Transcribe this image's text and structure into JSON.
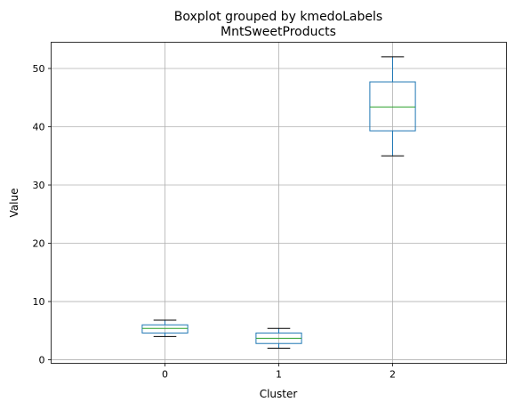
{
  "chart_data": {
    "type": "boxplot",
    "suptitle": "Boxplot grouped by kmedoLabels",
    "title": "MntSweetProducts",
    "xlabel": "Cluster",
    "ylabel": "Value",
    "categories": [
      "0",
      "1",
      "2"
    ],
    "yticks": [
      0,
      10,
      20,
      30,
      40,
      50
    ],
    "ylim": [
      -0.6,
      54.5
    ],
    "grid": true,
    "boxes": [
      {
        "category": "0",
        "whisker_low": 4.0,
        "q1": 4.6,
        "median": 5.4,
        "q3": 6.0,
        "whisker_high": 6.8
      },
      {
        "category": "1",
        "whisker_low": 2.0,
        "q1": 2.8,
        "median": 3.7,
        "q3": 4.6,
        "whisker_high": 5.4
      },
      {
        "category": "2",
        "whisker_low": 35.0,
        "q1": 39.3,
        "median": 43.4,
        "q3": 47.7,
        "whisker_high": 52.0
      }
    ],
    "colors": {
      "box": "#1f77b4",
      "median": "#2ca02c",
      "whisker_cap": "#000000",
      "grid": "#b0b0b0"
    }
  }
}
